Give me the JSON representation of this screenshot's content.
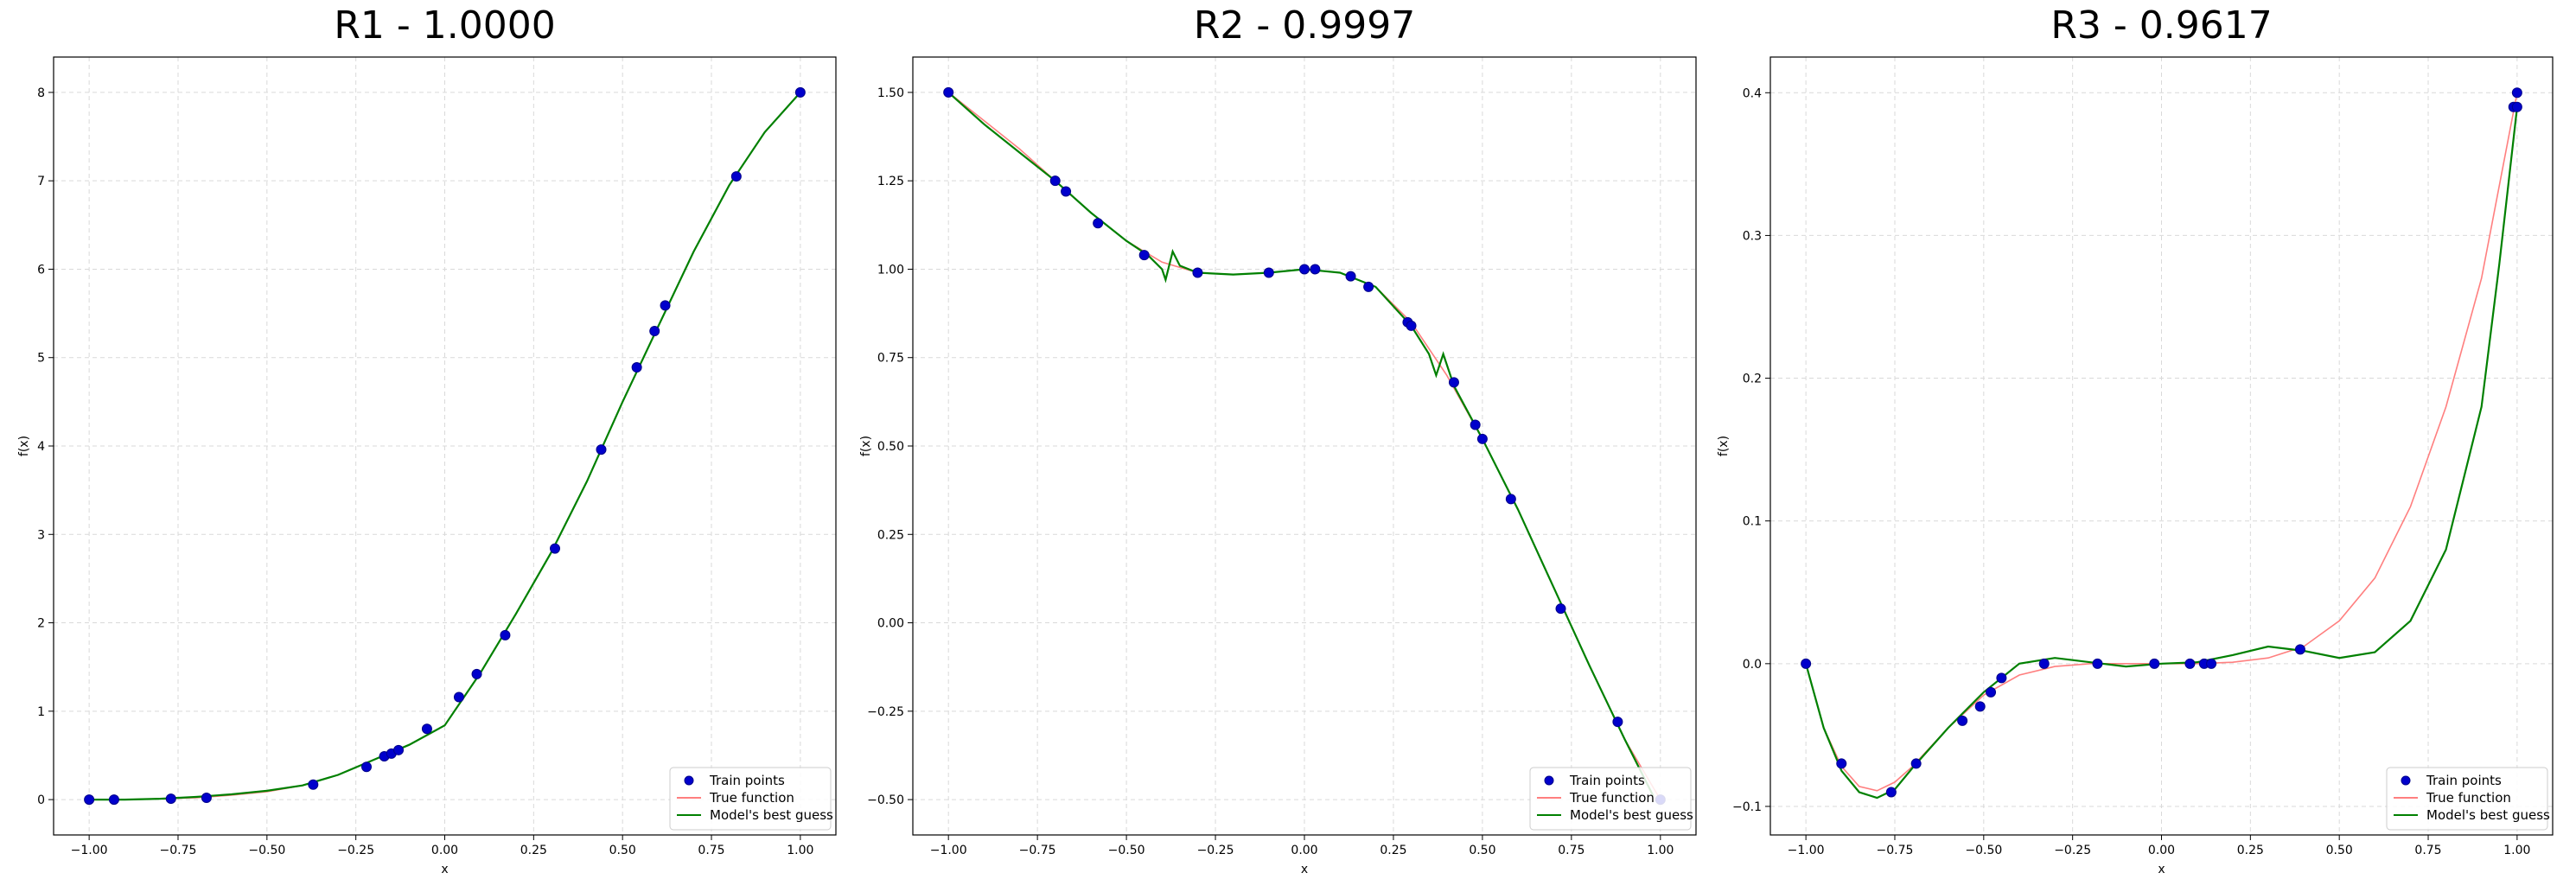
{
  "chart_data": [
    {
      "type": "line",
      "title": "R1 - 1.0000",
      "xlabel": "x",
      "ylabel": "f(x)",
      "xlim": [
        -1.1,
        1.1
      ],
      "ylim": [
        -0.4,
        8.4
      ],
      "xticks": [
        -1.0,
        -0.75,
        -0.5,
        -0.25,
        0.0,
        0.25,
        0.5,
        0.75,
        1.0
      ],
      "xtick_labels": [
        "−1.00",
        "−0.75",
        "−0.50",
        "−0.25",
        "0.00",
        "0.25",
        "0.50",
        "0.75",
        "1.00"
      ],
      "yticks": [
        0,
        1,
        2,
        3,
        4,
        5,
        6,
        7,
        8
      ],
      "ytick_labels": [
        "0",
        "1",
        "2",
        "3",
        "4",
        "5",
        "6",
        "7",
        "8"
      ],
      "grid": true,
      "legend_position": "lower-right",
      "series": [
        {
          "name": "True function",
          "kind": "line",
          "color": "#ff7f7f",
          "x": [
            -1.0,
            -0.9,
            -0.8,
            -0.7,
            -0.6,
            -0.5,
            -0.4,
            -0.3,
            -0.2,
            -0.1,
            0.0,
            0.1,
            0.2,
            0.3,
            0.4,
            0.5,
            0.6,
            0.7,
            0.8,
            0.9,
            1.0
          ],
          "y": [
            0.0,
            0.0,
            0.01,
            0.02,
            0.05,
            0.09,
            0.16,
            0.28,
            0.45,
            0.62,
            0.84,
            1.43,
            2.1,
            2.8,
            3.6,
            4.5,
            5.35,
            6.2,
            6.95,
            7.55,
            8.0
          ]
        },
        {
          "name": "Model's best guess",
          "kind": "line",
          "color": "#008000",
          "x": [
            -1.0,
            -0.9,
            -0.8,
            -0.7,
            -0.6,
            -0.5,
            -0.4,
            -0.3,
            -0.2,
            -0.1,
            0.0,
            0.1,
            0.2,
            0.3,
            0.4,
            0.5,
            0.6,
            0.7,
            0.8,
            0.9,
            1.0
          ],
          "y": [
            0.0,
            0.0,
            0.01,
            0.03,
            0.06,
            0.1,
            0.16,
            0.28,
            0.45,
            0.62,
            0.84,
            1.43,
            2.1,
            2.8,
            3.6,
            4.5,
            5.35,
            6.2,
            6.95,
            7.55,
            8.0
          ]
        },
        {
          "name": "Train points",
          "kind": "scatter",
          "color": "#0000cc",
          "x": [
            -1.0,
            -0.93,
            -0.77,
            -0.67,
            -0.37,
            -0.22,
            -0.17,
            -0.15,
            -0.13,
            -0.05,
            0.04,
            0.09,
            0.17,
            0.31,
            0.44,
            0.54,
            0.59,
            0.62,
            0.82,
            1.0
          ],
          "y": [
            0.0,
            0.0,
            0.01,
            0.02,
            0.17,
            0.37,
            0.49,
            0.52,
            0.56,
            0.8,
            1.16,
            1.42,
            1.86,
            2.84,
            3.96,
            4.89,
            5.3,
            5.59,
            7.05,
            8.0
          ]
        }
      ]
    },
    {
      "type": "line",
      "title": "R2 - 0.9997",
      "xlabel": "x",
      "ylabel": "f(x)",
      "xlim": [
        -1.1,
        1.1
      ],
      "ylim": [
        -0.6,
        1.6
      ],
      "xticks": [
        -1.0,
        -0.75,
        -0.5,
        -0.25,
        0.0,
        0.25,
        0.5,
        0.75,
        1.0
      ],
      "xtick_labels": [
        "−1.00",
        "−0.75",
        "−0.50",
        "−0.25",
        "0.00",
        "0.25",
        "0.50",
        "0.75",
        "1.00"
      ],
      "yticks": [
        -0.5,
        -0.25,
        0.0,
        0.25,
        0.5,
        0.75,
        1.0,
        1.25,
        1.5
      ],
      "ytick_labels": [
        "−0.50",
        "−0.25",
        "0.00",
        "0.25",
        "0.50",
        "0.75",
        "1.00",
        "1.25",
        "1.50"
      ],
      "grid": true,
      "legend_position": "lower-right",
      "series": [
        {
          "name": "True function",
          "kind": "line",
          "color": "#ff7f7f",
          "x": [
            -1.0,
            -0.9,
            -0.8,
            -0.7,
            -0.6,
            -0.5,
            -0.4,
            -0.3,
            -0.2,
            -0.1,
            0.0,
            0.1,
            0.2,
            0.3,
            0.4,
            0.5,
            0.6,
            0.7,
            0.8,
            0.9,
            1.0
          ],
          "y": [
            1.5,
            1.42,
            1.34,
            1.25,
            1.16,
            1.08,
            1.02,
            0.99,
            0.985,
            0.99,
            1.0,
            0.99,
            0.95,
            0.85,
            0.7,
            0.52,
            0.32,
            0.1,
            -0.12,
            -0.33,
            -0.5
          ]
        },
        {
          "name": "Model's best guess",
          "kind": "line",
          "color": "#008000",
          "x": [
            -1.0,
            -0.9,
            -0.8,
            -0.7,
            -0.6,
            -0.5,
            -0.44,
            -0.4,
            -0.39,
            -0.37,
            -0.35,
            -0.3,
            -0.2,
            -0.1,
            0.0,
            0.1,
            0.2,
            0.3,
            0.35,
            0.37,
            0.39,
            0.42,
            0.5,
            0.6,
            0.7,
            0.8,
            0.9,
            0.98
          ],
          "y": [
            1.5,
            1.41,
            1.33,
            1.25,
            1.16,
            1.08,
            1.04,
            1.0,
            0.97,
            1.05,
            1.01,
            0.99,
            0.985,
            0.99,
            1.0,
            0.99,
            0.95,
            0.84,
            0.76,
            0.7,
            0.76,
            0.67,
            0.52,
            0.32,
            0.1,
            -0.12,
            -0.33,
            -0.49
          ]
        },
        {
          "name": "Train points",
          "kind": "scatter",
          "color": "#0000cc",
          "x": [
            -1.0,
            -0.7,
            -0.67,
            -0.58,
            -0.45,
            -0.3,
            -0.1,
            0.0,
            0.03,
            0.13,
            0.18,
            0.29,
            0.3,
            0.42,
            0.48,
            0.5,
            0.58,
            0.72,
            0.88,
            1.0
          ],
          "y": [
            1.5,
            1.25,
            1.22,
            1.13,
            1.04,
            0.99,
            0.99,
            1.0,
            1.0,
            0.98,
            0.95,
            0.85,
            0.84,
            0.68,
            0.56,
            0.52,
            0.35,
            0.04,
            -0.28,
            -0.5
          ]
        }
      ]
    },
    {
      "type": "line",
      "title": "R3 - 0.9617",
      "xlabel": "x",
      "ylabel": "f(x)",
      "xlim": [
        -1.1,
        1.1
      ],
      "ylim": [
        -0.12,
        0.425
      ],
      "xticks": [
        -1.0,
        -0.75,
        -0.5,
        -0.25,
        0.0,
        0.25,
        0.5,
        0.75,
        1.0
      ],
      "xtick_labels": [
        "−1.00",
        "−0.75",
        "−0.50",
        "−0.25",
        "0.00",
        "0.25",
        "0.50",
        "0.75",
        "1.00"
      ],
      "yticks": [
        -0.1,
        0.0,
        0.1,
        0.2,
        0.3,
        0.4
      ],
      "ytick_labels": [
        "−0.1",
        "0.0",
        "0.1",
        "0.2",
        "0.3",
        "0.4"
      ],
      "grid": true,
      "legend_position": "lower-right",
      "series": [
        {
          "name": "True function",
          "kind": "line",
          "color": "#ff7f7f",
          "x": [
            -1.0,
            -0.95,
            -0.9,
            -0.85,
            -0.8,
            -0.75,
            -0.7,
            -0.6,
            -0.5,
            -0.4,
            -0.3,
            -0.2,
            -0.1,
            0.0,
            0.1,
            0.2,
            0.3,
            0.4,
            0.5,
            0.6,
            0.7,
            0.8,
            0.9,
            1.0
          ],
          "y": [
            0.0,
            -0.045,
            -0.072,
            -0.086,
            -0.089,
            -0.083,
            -0.072,
            -0.045,
            -0.022,
            -0.008,
            -0.002,
            0.0,
            0.0,
            0.0,
            0.0,
            0.001,
            0.004,
            0.012,
            0.03,
            0.06,
            0.11,
            0.18,
            0.27,
            0.4
          ]
        },
        {
          "name": "Model's best guess",
          "kind": "line",
          "color": "#008000",
          "x": [
            -1.0,
            -0.95,
            -0.9,
            -0.85,
            -0.8,
            -0.75,
            -0.7,
            -0.6,
            -0.5,
            -0.4,
            -0.3,
            -0.2,
            -0.1,
            0.0,
            0.1,
            0.2,
            0.3,
            0.4,
            0.5,
            0.6,
            0.7,
            0.8,
            0.9,
            0.95,
            1.0
          ],
          "y": [
            0.0,
            -0.045,
            -0.075,
            -0.09,
            -0.094,
            -0.088,
            -0.073,
            -0.045,
            -0.02,
            0.0,
            0.004,
            0.001,
            -0.002,
            0.0,
            0.001,
            0.006,
            0.012,
            0.009,
            0.004,
            0.008,
            0.03,
            0.08,
            0.18,
            0.28,
            0.39
          ]
        },
        {
          "name": "Train points",
          "kind": "scatter",
          "color": "#0000cc",
          "x": [
            -1.0,
            -0.9,
            -0.76,
            -0.69,
            -0.56,
            -0.51,
            -0.48,
            -0.45,
            -0.33,
            -0.18,
            -0.02,
            0.08,
            0.12,
            0.14,
            0.39,
            0.99,
            1.0,
            1.0
          ],
          "y": [
            0.0,
            -0.07,
            -0.09,
            -0.07,
            -0.04,
            -0.03,
            -0.02,
            -0.01,
            0.0,
            0.0,
            0.0,
            0.0,
            0.0,
            0.0,
            0.01,
            0.39,
            0.4,
            0.39
          ]
        }
      ]
    }
  ]
}
